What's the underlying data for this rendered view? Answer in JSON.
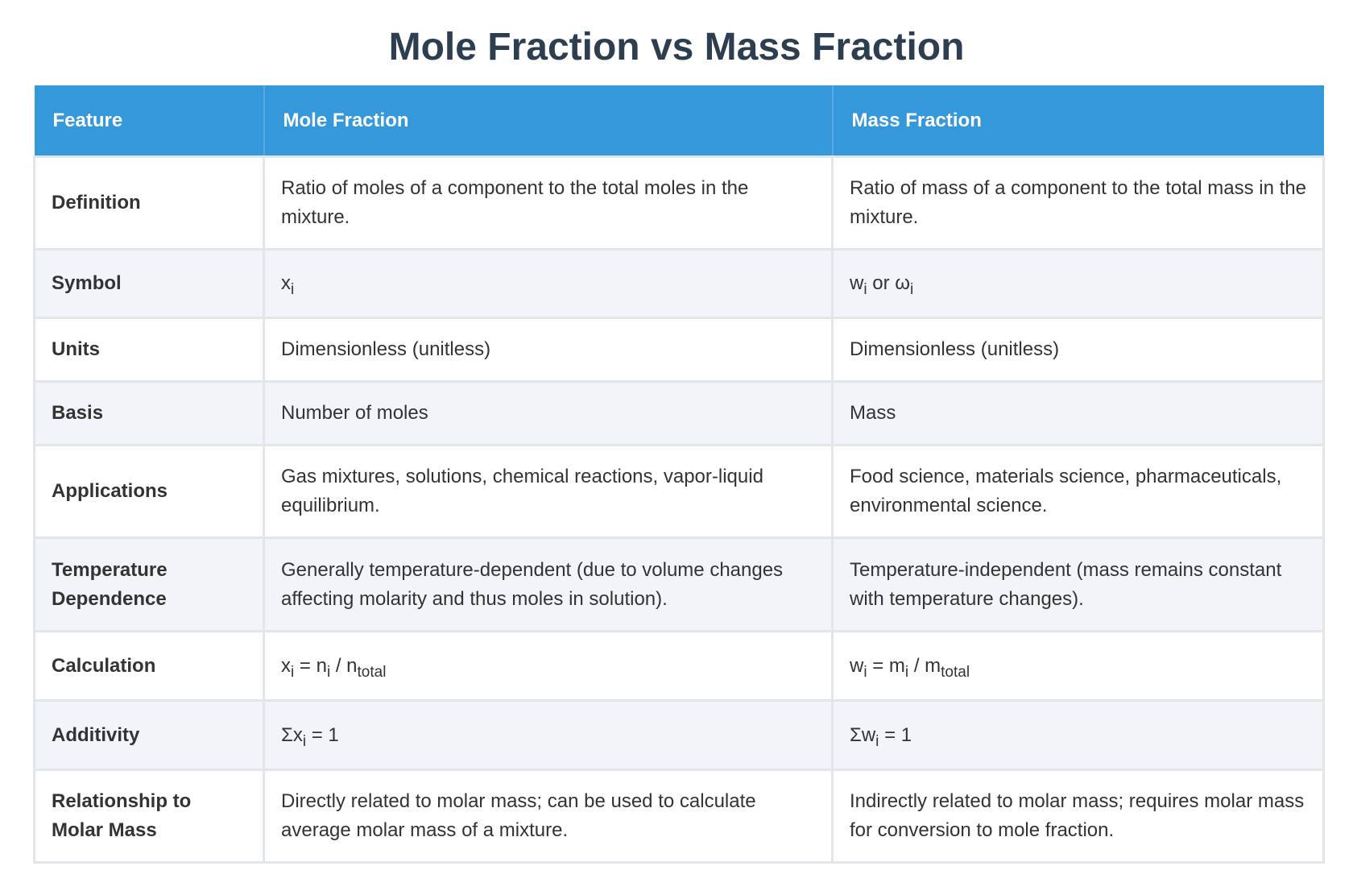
{
  "title": "Mole Fraction vs Mass Fraction",
  "headers": {
    "feature": "Feature",
    "mole": "Mole Fraction",
    "mass": "Mass Fraction"
  },
  "rows": {
    "definition": {
      "feature": "Definition",
      "mole": "Ratio of moles of a component to the total moles in the mixture.",
      "mass": "Ratio of mass of a component to the total mass in the mixture."
    },
    "symbol": {
      "feature": "Symbol",
      "mole": {
        "base": "x",
        "sub": "i"
      },
      "mass": {
        "base1": "w",
        "sub1": "i",
        "mid": " or ω",
        "sub2": "i"
      }
    },
    "units": {
      "feature": "Units",
      "mole": "Dimensionless (unitless)",
      "mass": "Dimensionless (unitless)"
    },
    "basis": {
      "feature": "Basis",
      "mole": "Number of moles",
      "mass": "Mass"
    },
    "applications": {
      "feature": "Applications",
      "mole": "Gas mixtures, solutions, chemical reactions, vapor-liquid equilibrium.",
      "mass": "Food science, materials science, pharmaceuticals, environmental science."
    },
    "temperature": {
      "feature_line1": "Temperature",
      "feature_line2": "Dependence",
      "mole": "Generally temperature-dependent (due to volume changes affecting molarity and thus moles in solution).",
      "mass": "Temperature-independent (mass remains constant with temperature changes)."
    },
    "calculation": {
      "feature": "Calculation",
      "mole": {
        "a": "x",
        "a_sub": "i",
        "eq": " = n",
        "b_sub": "i",
        "div": " / n",
        "c_sub": "total"
      },
      "mass": {
        "a": "w",
        "a_sub": "i",
        "eq": " = m",
        "b_sub": "i",
        "div": " / m",
        "c_sub": "total"
      }
    },
    "additivity": {
      "feature": "Additivity",
      "mole": {
        "pre": "Σx",
        "sub": "i",
        "post": " = 1"
      },
      "mass": {
        "pre": "Σw",
        "sub": "i",
        "post": " = 1"
      }
    },
    "relationship": {
      "feature_line1": "Relationship to",
      "feature_line2": "Molar Mass",
      "mole": "Directly related to molar mass; can be used to calculate average molar mass of a mixture.",
      "mass": "Indirectly related to molar mass; requires molar mass for conversion to mole fraction."
    }
  }
}
